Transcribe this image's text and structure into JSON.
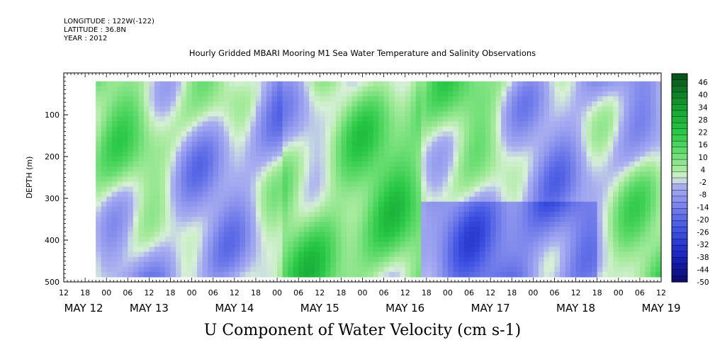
{
  "header": {
    "longitude": "LONGITUDE : 122W(-122)",
    "latitude": "LATITUDE : 36.8N",
    "year": "YEAR : 2012"
  },
  "chart_data": {
    "type": "heatmap",
    "title": "Hourly Gridded MBARI Mooring M1 Sea Water Temperature and Salinity Observations",
    "xlabel": "U Component of Water Velocity (cm s-1)",
    "ylabel": "DEPTH (m)",
    "ylim": [
      500,
      0
    ],
    "y_ticks": [
      100,
      200,
      300,
      400,
      500
    ],
    "x_range_hours": "May 12 12:00 to May 19 12:00, 2012",
    "x_hour_ticks": [
      "12",
      "18",
      "00",
      "06",
      "12",
      "18",
      "00",
      "06",
      "12",
      "18",
      "00",
      "06",
      "12",
      "18",
      "00",
      "06",
      "12",
      "18",
      "00",
      "06",
      "12",
      "18",
      "00",
      "06",
      "12",
      "18",
      "00",
      "06",
      "12"
    ],
    "x_day_labels": [
      "MAY 12",
      "MAY 13",
      "MAY 14",
      "MAY 15",
      "MAY 16",
      "MAY 17",
      "MAY 18",
      "MAY 19"
    ],
    "data_extent": {
      "depth_min": 20,
      "depth_max": 488,
      "time_start": "May 12 21:00"
    },
    "colorbar": {
      "labels": [
        "46",
        "40",
        "34",
        "28",
        "22",
        "16",
        "10",
        "4",
        "-2",
        "-8",
        "-14",
        "-20",
        "-26",
        "-32",
        "-38",
        "-44",
        "-50"
      ],
      "range": [
        -50,
        50
      ]
    },
    "colors": {
      "positive": "#2ecc40",
      "near_zero": "#c8f0c0",
      "negative": "#8f8fe8",
      "strong_negative": "#1a1aa0"
    }
  }
}
